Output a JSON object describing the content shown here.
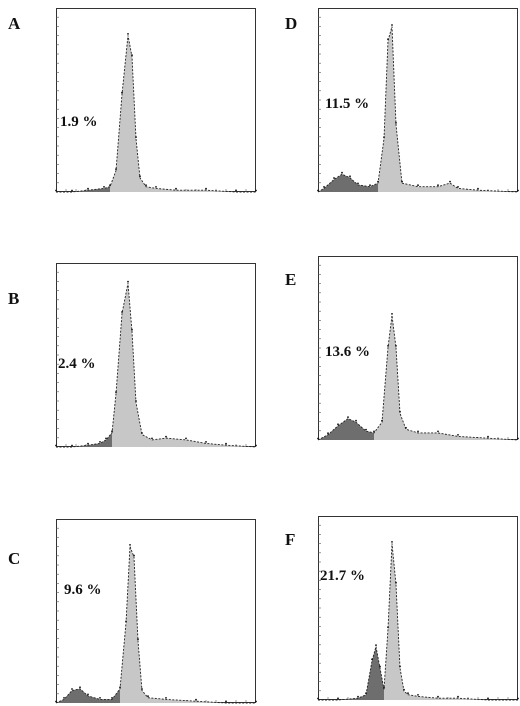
{
  "figure": {
    "panels": [
      {
        "letter": "A",
        "percent": "1.9 %"
      },
      {
        "letter": "B",
        "percent": "2.4 %"
      },
      {
        "letter": "C",
        "percent": "9.6 %"
      },
      {
        "letter": "D",
        "percent": "11.5 %"
      },
      {
        "letter": "E",
        "percent": "13.6 %"
      },
      {
        "letter": "F",
        "percent": "21.7 %"
      }
    ]
  },
  "chart_data": [
    {
      "type": "area",
      "panel": "A",
      "sub_g1_percent": 1.9,
      "xlim": [
        0,
        1
      ],
      "ylim": [
        0,
        1
      ],
      "grid": false,
      "series": [
        {
          "x": [
            0.0,
            0.08,
            0.16,
            0.24,
            0.27,
            0.3,
            0.33,
            0.36,
            0.38,
            0.4,
            0.42,
            0.45,
            0.5,
            0.6,
            0.75,
            0.9,
            1.0
          ],
          "y": [
            0.0,
            0.0,
            0.01,
            0.02,
            0.03,
            0.12,
            0.55,
            0.88,
            0.76,
            0.3,
            0.08,
            0.03,
            0.02,
            0.01,
            0.01,
            0.0,
            0.0
          ]
        }
      ]
    },
    {
      "type": "area",
      "panel": "B",
      "sub_g1_percent": 2.4,
      "xlim": [
        0,
        1
      ],
      "ylim": [
        0,
        1
      ],
      "grid": false,
      "series": [
        {
          "x": [
            0.0,
            0.08,
            0.16,
            0.22,
            0.25,
            0.28,
            0.3,
            0.33,
            0.36,
            0.38,
            0.4,
            0.43,
            0.48,
            0.55,
            0.65,
            0.75,
            0.85,
            1.0
          ],
          "y": [
            0.0,
            0.0,
            0.01,
            0.02,
            0.04,
            0.08,
            0.3,
            0.75,
            0.92,
            0.65,
            0.25,
            0.07,
            0.04,
            0.05,
            0.04,
            0.02,
            0.01,
            0.0
          ]
        }
      ]
    },
    {
      "type": "area",
      "panel": "C",
      "sub_g1_percent": 9.6,
      "xlim": [
        0,
        1
      ],
      "ylim": [
        0,
        1
      ],
      "grid": false,
      "series": [
        {
          "x": [
            0.0,
            0.04,
            0.08,
            0.12,
            0.16,
            0.22,
            0.28,
            0.32,
            0.35,
            0.37,
            0.39,
            0.41,
            0.43,
            0.46,
            0.55,
            0.7,
            0.85,
            1.0
          ],
          "y": [
            0.0,
            0.02,
            0.07,
            0.08,
            0.04,
            0.02,
            0.02,
            0.08,
            0.45,
            0.88,
            0.82,
            0.35,
            0.07,
            0.03,
            0.02,
            0.01,
            0.0,
            0.0
          ]
        }
      ]
    },
    {
      "type": "area",
      "panel": "D",
      "sub_g1_percent": 11.5,
      "xlim": [
        0,
        1
      ],
      "ylim": [
        0,
        1
      ],
      "grid": false,
      "series": [
        {
          "x": [
            0.0,
            0.03,
            0.08,
            0.12,
            0.16,
            0.2,
            0.26,
            0.3,
            0.33,
            0.35,
            0.37,
            0.39,
            0.42,
            0.5,
            0.6,
            0.66,
            0.7,
            0.8,
            1.0
          ],
          "y": [
            0.0,
            0.02,
            0.07,
            0.1,
            0.08,
            0.04,
            0.03,
            0.05,
            0.3,
            0.85,
            0.93,
            0.38,
            0.05,
            0.03,
            0.03,
            0.05,
            0.02,
            0.01,
            0.0
          ]
        }
      ]
    },
    {
      "type": "area",
      "panel": "E",
      "sub_g1_percent": 13.6,
      "xlim": [
        0,
        1
      ],
      "ylim": [
        0,
        1
      ],
      "grid": false,
      "series": [
        {
          "x": [
            0.0,
            0.05,
            0.1,
            0.15,
            0.19,
            0.24,
            0.28,
            0.32,
            0.35,
            0.37,
            0.39,
            0.41,
            0.44,
            0.5,
            0.6,
            0.7,
            0.85,
            1.0
          ],
          "y": [
            0.0,
            0.03,
            0.08,
            0.12,
            0.1,
            0.05,
            0.04,
            0.1,
            0.52,
            0.7,
            0.52,
            0.15,
            0.06,
            0.04,
            0.04,
            0.02,
            0.01,
            0.0
          ]
        }
      ]
    },
    {
      "type": "area",
      "panel": "F",
      "sub_g1_percent": 21.7,
      "xlim": [
        0,
        1
      ],
      "ylim": [
        0,
        1
      ],
      "grid": false,
      "series": [
        {
          "x": [
            0.0,
            0.1,
            0.2,
            0.24,
            0.27,
            0.29,
            0.31,
            0.33,
            0.35,
            0.37,
            0.39,
            0.41,
            0.43,
            0.45,
            0.5,
            0.6,
            0.7,
            0.85,
            1.0
          ],
          "y": [
            0.0,
            0.0,
            0.01,
            0.03,
            0.22,
            0.3,
            0.18,
            0.06,
            0.4,
            0.88,
            0.65,
            0.18,
            0.05,
            0.03,
            0.02,
            0.01,
            0.01,
            0.0,
            0.0
          ]
        }
      ]
    }
  ]
}
